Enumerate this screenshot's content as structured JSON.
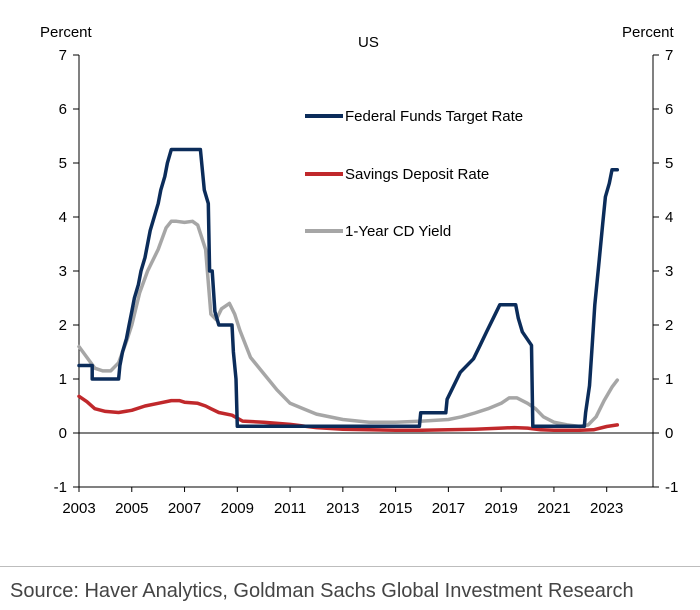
{
  "chart_data": {
    "type": "line",
    "title": "US",
    "ylabel_left": "Percent",
    "ylabel_right": "Percent",
    "ylim": [
      -1,
      7
    ],
    "yticks": [
      "7",
      "6",
      "5",
      "4",
      "3",
      "2",
      "1",
      "0",
      "-1"
    ],
    "xticks": [
      "2003",
      "2005",
      "2007",
      "2009",
      "2011",
      "2013",
      "2015",
      "2017",
      "2019",
      "2021",
      "2023"
    ],
    "xlim": [
      2003,
      2024.3
    ],
    "grid": false,
    "legend_position": "top-center",
    "series": [
      {
        "name": "Federal Funds Target Rate",
        "color": "#0b2c5a",
        "x": [
          2003.0,
          2003.5,
          2003.5,
          2004.5,
          2004.55,
          2004.65,
          2004.8,
          2004.9,
          2005.0,
          2005.1,
          2005.25,
          2005.35,
          2005.5,
          2005.6,
          2005.7,
          2005.85,
          2006.0,
          2006.1,
          2006.25,
          2006.35,
          2006.5,
          2007.6,
          2007.7,
          2007.75,
          2007.9,
          2007.95,
          2008.05,
          2008.15,
          2008.3,
          2008.8,
          2008.85,
          2008.95,
          2009.0,
          2015.9,
          2015.95,
          2016.9,
          2016.95,
          2017.2,
          2017.45,
          2017.95,
          2018.2,
          2018.45,
          2018.7,
          2018.95,
          2019.55,
          2019.65,
          2019.8,
          2020.15,
          2020.2,
          2022.15,
          2022.2,
          2022.35,
          2022.45,
          2022.55,
          2022.7,
          2022.85,
          2022.95,
          2023.1,
          2023.2,
          2023.4
        ],
        "values": [
          1.25,
          1.25,
          1.0,
          1.0,
          1.25,
          1.5,
          1.75,
          2.0,
          2.25,
          2.5,
          2.75,
          3.0,
          3.25,
          3.5,
          3.75,
          4.0,
          4.25,
          4.5,
          4.75,
          5.0,
          5.25,
          5.25,
          4.75,
          4.5,
          4.25,
          3.0,
          3.0,
          2.25,
          2.0,
          2.0,
          1.5,
          1.0,
          0.125,
          0.125,
          0.375,
          0.375,
          0.625,
          0.875,
          1.125,
          1.375,
          1.625,
          1.875,
          2.125,
          2.375,
          2.375,
          2.125,
          1.875,
          1.625,
          0.125,
          0.125,
          0.375,
          0.875,
          1.625,
          2.375,
          3.125,
          3.875,
          4.375,
          4.625,
          4.875,
          4.875
        ]
      },
      {
        "name": "Savings Deposit Rate",
        "color": "#c0282b",
        "x": [
          2003.0,
          2003.3,
          2003.6,
          2004.0,
          2004.5,
          2005.0,
          2005.5,
          2006.0,
          2006.5,
          2006.8,
          2007.0,
          2007.5,
          2007.8,
          2008.0,
          2008.3,
          2008.8,
          2009.2,
          2010.0,
          2011.0,
          2012.0,
          2013.0,
          2014.0,
          2015.0,
          2016.0,
          2017.0,
          2018.0,
          2019.0,
          2019.5,
          2020.0,
          2020.5,
          2021.0,
          2022.0,
          2022.5,
          2023.0,
          2023.4
        ],
        "values": [
          0.68,
          0.58,
          0.45,
          0.4,
          0.38,
          0.42,
          0.5,
          0.55,
          0.6,
          0.6,
          0.57,
          0.55,
          0.5,
          0.45,
          0.38,
          0.33,
          0.22,
          0.2,
          0.16,
          0.1,
          0.07,
          0.06,
          0.05,
          0.05,
          0.06,
          0.07,
          0.09,
          0.1,
          0.09,
          0.06,
          0.05,
          0.05,
          0.06,
          0.12,
          0.15
        ]
      },
      {
        "name": "1-Year CD Yield",
        "color": "#a6a6a6",
        "x": [
          2003.0,
          2003.3,
          2003.6,
          2003.9,
          2004.2,
          2004.5,
          2004.8,
          2005.0,
          2005.3,
          2005.6,
          2006.0,
          2006.3,
          2006.5,
          2006.7,
          2007.0,
          2007.3,
          2007.5,
          2007.8,
          2008.0,
          2008.2,
          2008.4,
          2008.7,
          2008.9,
          2009.1,
          2009.5,
          2010.0,
          2010.5,
          2011.0,
          2011.5,
          2012.0,
          2013.0,
          2014.0,
          2015.0,
          2016.0,
          2017.0,
          2017.5,
          2018.0,
          2018.5,
          2019.0,
          2019.3,
          2019.6,
          2020.0,
          2020.3,
          2020.6,
          2021.0,
          2021.5,
          2022.0,
          2022.3,
          2022.6,
          2022.9,
          2023.2,
          2023.4
        ],
        "values": [
          1.6,
          1.4,
          1.2,
          1.15,
          1.15,
          1.3,
          1.7,
          2.0,
          2.6,
          3.0,
          3.4,
          3.8,
          3.92,
          3.92,
          3.9,
          3.92,
          3.85,
          3.4,
          2.2,
          2.1,
          2.3,
          2.4,
          2.2,
          1.9,
          1.4,
          1.1,
          0.8,
          0.55,
          0.45,
          0.35,
          0.25,
          0.2,
          0.2,
          0.22,
          0.25,
          0.3,
          0.37,
          0.45,
          0.55,
          0.65,
          0.65,
          0.55,
          0.45,
          0.3,
          0.2,
          0.15,
          0.12,
          0.15,
          0.3,
          0.6,
          0.85,
          0.98
        ]
      }
    ]
  },
  "source": "Source: Haver Analytics, Goldman Sachs Global Investment Research"
}
